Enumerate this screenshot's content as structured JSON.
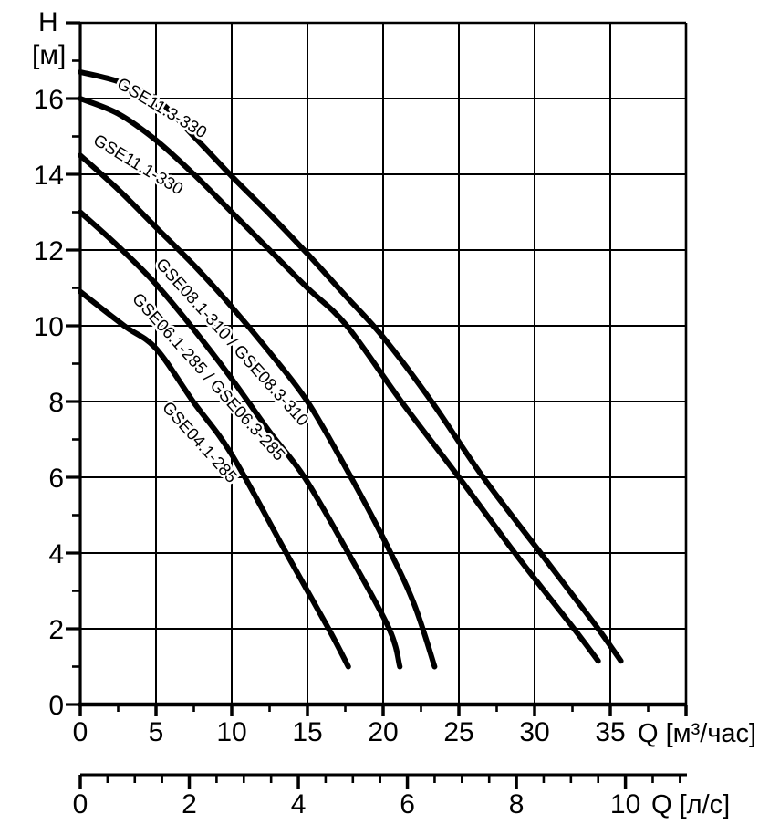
{
  "page": {
    "background": "#ffffff",
    "foreground": "#000000"
  },
  "chart_data": {
    "type": "line",
    "title": "",
    "ylabel_line1": "H",
    "ylabel_line2": "[м]",
    "xlabel_primary": "Q [м³/час]",
    "xlabel_secondary": "Q [л/с]",
    "grid": "on",
    "legend": "inline-rotated-labels",
    "y_axis": {
      "unit": "м",
      "min": 0,
      "max": 18,
      "major_tick_step": 2,
      "minor_tick_step": 1,
      "tick_labels": [
        "0",
        "2",
        "4",
        "6",
        "8",
        "10",
        "12",
        "14",
        "16"
      ]
    },
    "x_axis_primary": {
      "unit": "м³/час",
      "min": 0,
      "max": 40,
      "major_tick_step": 5,
      "minor_tick_step": 2.5,
      "tick_labels": [
        "0",
        "5",
        "10",
        "15",
        "20",
        "25",
        "30",
        "35"
      ]
    },
    "x_axis_secondary": {
      "unit": "л/с",
      "min": 0,
      "max": 11,
      "major_tick_step": 2,
      "minor_tick_step": 0.5,
      "tick_labels": [
        "0",
        "2",
        "4",
        "6",
        "8",
        "10"
      ],
      "m3h_per_unit": 3.6
    },
    "line_color": "#000000",
    "line_width": 6,
    "series": [
      {
        "name": "GSE11.3-330",
        "points": [
          [
            0,
            16.7
          ],
          [
            2.5,
            16.45
          ],
          [
            5,
            16.0
          ],
          [
            7.5,
            15.0
          ],
          [
            10,
            13.95
          ],
          [
            12.5,
            12.95
          ],
          [
            15,
            11.9
          ],
          [
            17.5,
            10.8
          ],
          [
            20,
            9.7
          ],
          [
            23.2,
            8.0
          ],
          [
            26.6,
            6.0
          ],
          [
            30.4,
            4.0
          ],
          [
            32.3,
            3.0
          ],
          [
            34.2,
            2.0
          ],
          [
            35.7,
            1.15
          ]
        ]
      },
      {
        "name": "GSE11.1-330",
        "points": [
          [
            0,
            16.0
          ],
          [
            2.5,
            15.6
          ],
          [
            5,
            14.9
          ],
          [
            7.5,
            14.0
          ],
          [
            10,
            13.0
          ],
          [
            12.5,
            12.0
          ],
          [
            15,
            11.0
          ],
          [
            17.6,
            10.0
          ],
          [
            21.2,
            8.0
          ],
          [
            25,
            6.0
          ],
          [
            28.7,
            4.0
          ],
          [
            32.6,
            2.0
          ],
          [
            34.2,
            1.15
          ]
        ]
      },
      {
        "name": "GSE08.1-310 / GSE08.3-310",
        "points": [
          [
            0,
            14.5
          ],
          [
            2.5,
            13.6
          ],
          [
            5,
            12.6
          ],
          [
            7.5,
            11.6
          ],
          [
            10,
            10.5
          ],
          [
            12.5,
            9.3
          ],
          [
            15,
            8.0
          ],
          [
            17.6,
            6.2
          ],
          [
            20,
            4.4
          ],
          [
            22,
            2.7
          ],
          [
            23.4,
            1.0
          ]
        ]
      },
      {
        "name": "GSE06.1-285 / GSE06.3-285",
        "points": [
          [
            0,
            13.0
          ],
          [
            2.5,
            12.1
          ],
          [
            5,
            11.1
          ],
          [
            7.5,
            9.9
          ],
          [
            10,
            8.6
          ],
          [
            12.5,
            7.2
          ],
          [
            14.8,
            6.0
          ],
          [
            17.7,
            4.0
          ],
          [
            20.4,
            2.0
          ],
          [
            21.1,
            1.0
          ]
        ]
      },
      {
        "name": "GSE04.1-285",
        "points": [
          [
            0,
            10.9
          ],
          [
            2.9,
            10.0
          ],
          [
            5,
            9.4
          ],
          [
            7.45,
            8.0
          ],
          [
            10,
            6.6
          ],
          [
            13.6,
            4.0
          ],
          [
            16.4,
            2.0
          ],
          [
            17.7,
            1.0
          ]
        ]
      }
    ]
  }
}
